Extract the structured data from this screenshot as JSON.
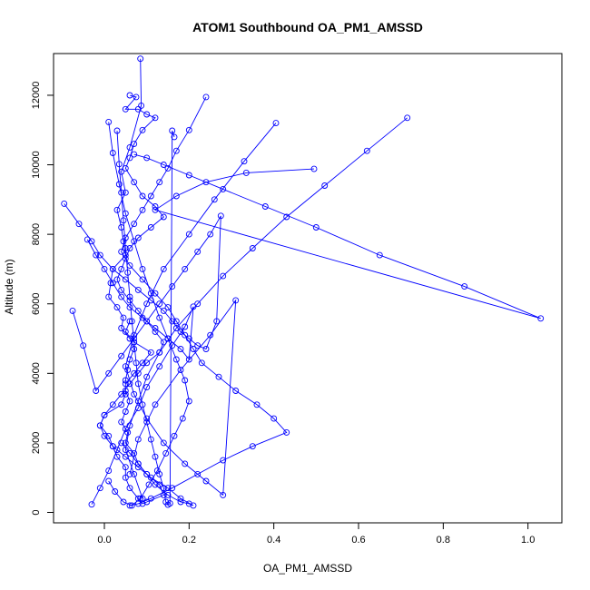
{
  "chart_data": {
    "type": "line",
    "title": "ATOM1 Southbound OA_PM1_AMSSD",
    "xlabel": "OA_PM1_AMSSD",
    "ylabel": "Altitude (m)",
    "xlim": [
      -0.12,
      1.08
    ],
    "ylim": [
      -300,
      13200
    ],
    "xticks": [
      0.0,
      0.2,
      0.4,
      0.6,
      0.8,
      1.0
    ],
    "xtick_labels": [
      "0.0",
      "0.2",
      "0.4",
      "0.6",
      "0.8",
      "1.0"
    ],
    "yticks": [
      0,
      2000,
      4000,
      6000,
      8000,
      10000,
      12000
    ],
    "ytick_labels": [
      "0",
      "2000",
      "4000",
      "6000",
      "8000",
      "10000",
      "12000"
    ],
    "grid": false,
    "legend": "none",
    "color": "#0000FF",
    "marker": "open-circle",
    "series": [
      {
        "x": [
          0.085,
          0.087,
          0.06,
          0.04,
          0.05,
          0.03,
          0.04,
          0.045,
          0.05,
          0.02,
          0.015,
          0.01,
          0.03,
          0.045,
          0.04,
          0.06,
          0.07,
          0.06,
          0.055,
          0.05,
          0.05,
          0.06,
          0.05,
          0.04,
          0.055,
          0.05,
          0.07,
          0.08,
          0.1,
          0.13,
          0.14,
          0.1,
          0.09,
          0.08,
          0.06,
          0.05,
          0.05,
          0.03,
          0.02,
          0.01,
          -0.01,
          0.0,
          0.04,
          0.05,
          0.05,
          0.07,
          0.09,
          0.11,
          0.07,
          0.05,
          0.06
        ],
        "y": [
          13050,
          11700,
          10500,
          9800,
          9200,
          8700,
          8200,
          7800,
          7400,
          7000,
          6600,
          6200,
          5900,
          5600,
          5300,
          5000,
          4700,
          4400,
          4100,
          3800,
          3500,
          3200,
          2900,
          2600,
          2300,
          2000,
          1700,
          1400,
          1100,
          800,
          500,
          300,
          250,
          400,
          700,
          1000,
          1300,
          1600,
          1900,
          2200,
          2500,
          2800,
          3100,
          3400,
          3700,
          4000,
          4300,
          4600,
          4900,
          5200,
          5500
        ]
      },
      {
        "x": [
          0.06,
          0.075,
          0.05,
          0.08,
          0.1,
          0.12,
          0.09,
          0.07,
          0.06,
          0.05,
          0.07,
          0.09,
          0.12,
          0.14,
          0.11,
          0.08,
          0.06,
          0.05,
          0.04,
          0.03,
          0.04,
          0.06,
          0.08,
          0.1,
          0.12,
          0.14,
          0.13,
          0.1,
          0.08,
          0.06,
          0.04,
          0.02,
          0.0,
          -0.01,
          0.0,
          0.02,
          0.05,
          0.08,
          0.11,
          0.15,
          0.18,
          0.21,
          0.2,
          0.18,
          0.15,
          0.12,
          0.1,
          0.08,
          0.06,
          0.04
        ],
        "y": [
          12000,
          11950,
          11600,
          11600,
          11450,
          11350,
          11000,
          10600,
          10200,
          9900,
          9500,
          9100,
          8800,
          8500,
          8200,
          7900,
          7600,
          7300,
          7000,
          6700,
          6400,
          6100,
          5800,
          5500,
          5200,
          4900,
          4600,
          4300,
          4000,
          3700,
          3400,
          3100,
          2800,
          2500,
          2200,
          1900,
          1600,
          1300,
          1000,
          700,
          400,
          200,
          250,
          300,
          500,
          800,
          1100,
          1400,
          1700,
          2000
        ]
      },
      {
        "x": [
          0.24,
          0.2,
          0.17,
          0.15,
          0.13,
          0.11,
          0.09,
          0.07,
          0.05,
          0.04,
          0.06,
          0.09,
          0.12,
          0.15,
          0.17,
          0.19,
          0.21,
          0.23,
          0.27,
          0.31,
          0.36,
          0.4,
          0.43,
          0.35,
          0.28,
          0.22,
          0.16,
          0.11,
          0.08,
          0.06
        ],
        "y": [
          11950,
          11000,
          10400,
          9900,
          9500,
          9100,
          8700,
          8300,
          7900,
          7500,
          7100,
          6700,
          6300,
          5900,
          5500,
          5100,
          4700,
          4300,
          3900,
          3500,
          3100,
          2700,
          2300,
          1900,
          1500,
          1100,
          700,
          400,
          250,
          200
        ]
      },
      {
        "x": [
          0.405,
          0.33,
          0.26,
          0.2,
          0.14,
          0.1,
          0.07,
          0.05,
          0.07,
          0.1,
          0.14,
          0.19,
          0.24,
          0.28,
          0.31,
          0.25,
          0.18,
          0.12,
          0.08,
          0.06
        ],
        "y": [
          11200,
          10100,
          9000,
          8000,
          7000,
          6000,
          5100,
          4200,
          3400,
          2700,
          2000,
          1400,
          900,
          500,
          6100,
          5100,
          4100,
          3100,
          2100,
          1100
        ]
      },
      {
        "x": [
          0.715,
          0.62,
          0.52,
          0.43,
          0.35,
          0.28,
          0.22,
          0.17,
          0.13,
          0.1,
          0.08,
          0.06,
          0.05,
          0.07,
          0.09
        ],
        "y": [
          11350,
          10400,
          9400,
          8500,
          7600,
          6800,
          6000,
          5300,
          4600,
          3900,
          3200,
          2500,
          1800,
          1100,
          400
        ]
      },
      {
        "x": [
          0.495,
          0.335,
          0.24,
          0.17,
          0.12,
          1.03,
          0.85,
          0.65,
          0.5,
          0.38,
          0.28,
          0.2,
          0.14,
          0.1,
          0.07
        ],
        "y": [
          9880,
          9770,
          9500,
          9100,
          8700,
          5580,
          6500,
          7400,
          8200,
          8800,
          9300,
          9700,
          10000,
          10200,
          10300
        ]
      },
      {
        "x": [
          -0.095,
          -0.06,
          -0.03,
          -0.01,
          0.02,
          0.05,
          0.08,
          0.11,
          0.14,
          0.16,
          0.18,
          0.2,
          0.22,
          0.24,
          0.265,
          0.275,
          0.25,
          0.22,
          0.19,
          0.16,
          0.13,
          0.1,
          0.07,
          0.04,
          0.01,
          -0.02,
          -0.05,
          -0.075
        ],
        "y": [
          8880,
          8300,
          7800,
          7400,
          7000,
          6700,
          6400,
          6100,
          5800,
          5500,
          5200,
          5000,
          4800,
          4700,
          5500,
          8530,
          8000,
          7500,
          7000,
          6500,
          6000,
          5500,
          5000,
          4500,
          4000,
          3500,
          4800,
          5800
        ]
      },
      {
        "x": [
          -0.04,
          -0.02,
          0.0,
          0.02,
          0.04,
          0.06,
          0.09,
          0.12,
          0.15,
          0.18,
          0.2,
          0.21,
          0.19,
          0.16,
          0.13,
          0.1,
          0.08,
          0.05,
          0.03,
          0.01,
          -0.01,
          -0.03
        ],
        "y": [
          7850,
          7400,
          7000,
          6600,
          6200,
          5900,
          5600,
          5300,
          5000,
          4700,
          4400,
          5920,
          5340,
          4800,
          4200,
          3600,
          3000,
          2400,
          1800,
          1200,
          700,
          230
        ]
      },
      {
        "x": [
          0.01,
          0.02,
          0.035,
          0.05,
          0.07,
          0.09,
          0.11,
          0.13,
          0.15,
          0.17,
          0.19,
          0.2,
          0.185,
          0.165,
          0.145,
          0.125,
          0.105,
          0.085,
          0.065,
          0.045,
          0.025,
          0.01
        ],
        "y": [
          11230,
          10340,
          9440,
          8600,
          7800,
          7000,
          6300,
          5600,
          5000,
          4400,
          3800,
          3200,
          2700,
          2200,
          1700,
          1200,
          800,
          400,
          200,
          300,
          600,
          900
        ]
      },
      {
        "x": [
          0.03,
          0.035,
          0.04,
          0.045,
          0.05,
          0.055,
          0.06,
          0.065,
          0.07,
          0.075,
          0.08,
          0.09,
          0.1,
          0.11,
          0.12,
          0.13,
          0.14,
          0.145,
          0.15,
          0.155,
          0.16,
          0.165
        ],
        "y": [
          10980,
          10020,
          9200,
          8400,
          7600,
          6900,
          6200,
          5500,
          4900,
          4300,
          3700,
          3100,
          2600,
          2100,
          1600,
          1100,
          700,
          300,
          220,
          260,
          10980,
          10800
        ]
      }
    ]
  }
}
